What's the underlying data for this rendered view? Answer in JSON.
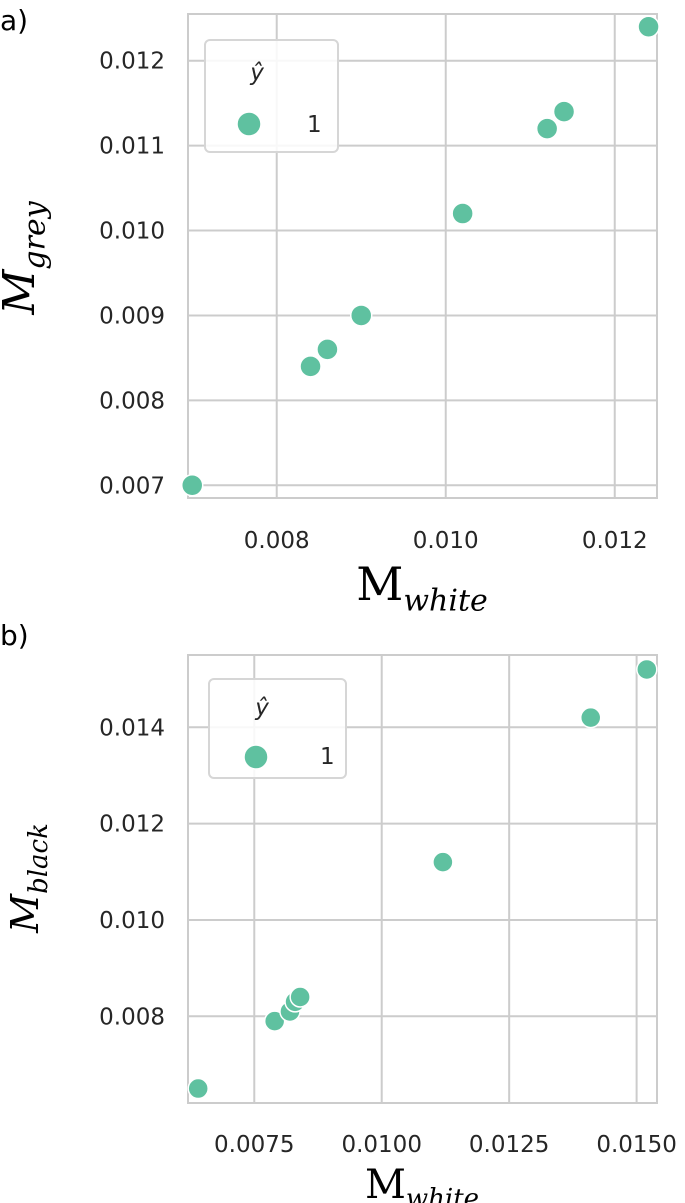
{
  "chart_data": [
    {
      "type": "scatter",
      "panel_label": "a)",
      "x": [
        0.007,
        0.0084,
        0.0086,
        0.009,
        0.0102,
        0.0112,
        0.0114,
        0.0124
      ],
      "y": [
        0.007,
        0.0084,
        0.0086,
        0.009,
        0.0102,
        0.0112,
        0.0114,
        0.0124
      ],
      "xlim": [
        0.00695,
        0.0125
      ],
      "ylim": [
        0.00685,
        0.01255
      ],
      "xticks": [
        "0.008",
        "0.010",
        "0.012"
      ],
      "xtick_values": [
        0.008,
        0.01,
        0.012
      ],
      "yticks": [
        "0.007",
        "0.008",
        "0.009",
        "0.010",
        "0.011",
        "0.012"
      ],
      "ytick_values": [
        0.007,
        0.008,
        0.009,
        0.01,
        0.011,
        0.012
      ],
      "xlabel": {
        "main": "M",
        "sub": "white"
      },
      "ylabel": {
        "main": "M",
        "sub": "grey"
      },
      "legend": {
        "title": "ŷ",
        "entries": [
          "1"
        ],
        "placement": "top-left"
      },
      "color": "#5fc1a0",
      "grid": true
    },
    {
      "type": "scatter",
      "panel_label": "b)",
      "x": [
        0.0064,
        0.0079,
        0.0082,
        0.0083,
        0.0084,
        0.0112,
        0.0141,
        0.0152
      ],
      "y": [
        0.0065,
        0.0079,
        0.0081,
        0.0083,
        0.0084,
        0.0112,
        0.0142,
        0.0152
      ],
      "xlim": [
        0.0062,
        0.0154
      ],
      "ylim": [
        0.0062,
        0.0155
      ],
      "xticks": [
        "0.0075",
        "0.0100",
        "0.0125",
        "0.0150"
      ],
      "xtick_values": [
        0.0075,
        0.01,
        0.0125,
        0.015
      ],
      "yticks": [
        "0.008",
        "0.010",
        "0.012",
        "0.014"
      ],
      "ytick_values": [
        0.008,
        0.01,
        0.012,
        0.014
      ],
      "xlabel": {
        "main": "M",
        "sub": "white"
      },
      "ylabel": {
        "main": "M",
        "sub": "black"
      },
      "legend": {
        "title": "ŷ",
        "entries": [
          "1"
        ],
        "placement": "top-left"
      },
      "color": "#5fc1a0",
      "grid": true
    }
  ]
}
